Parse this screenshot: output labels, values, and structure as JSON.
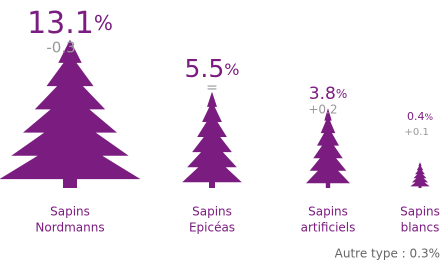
{
  "chart_data": {
    "type": "pictogram",
    "categories": [
      [
        "Sapins",
        "Nordmanns"
      ],
      [
        "Sapins",
        "Epicéas"
      ],
      [
        "Sapins",
        "artificiels"
      ],
      [
        "Sapins",
        "blancs"
      ]
    ],
    "values": [
      13.1,
      5.5,
      3.8,
      0.4
    ],
    "unit": "%",
    "changes": [
      "-0.3",
      "=",
      "+0.2",
      "+0.1"
    ],
    "note": "Autre type : 0.3%",
    "color": "#7b1c80"
  }
}
